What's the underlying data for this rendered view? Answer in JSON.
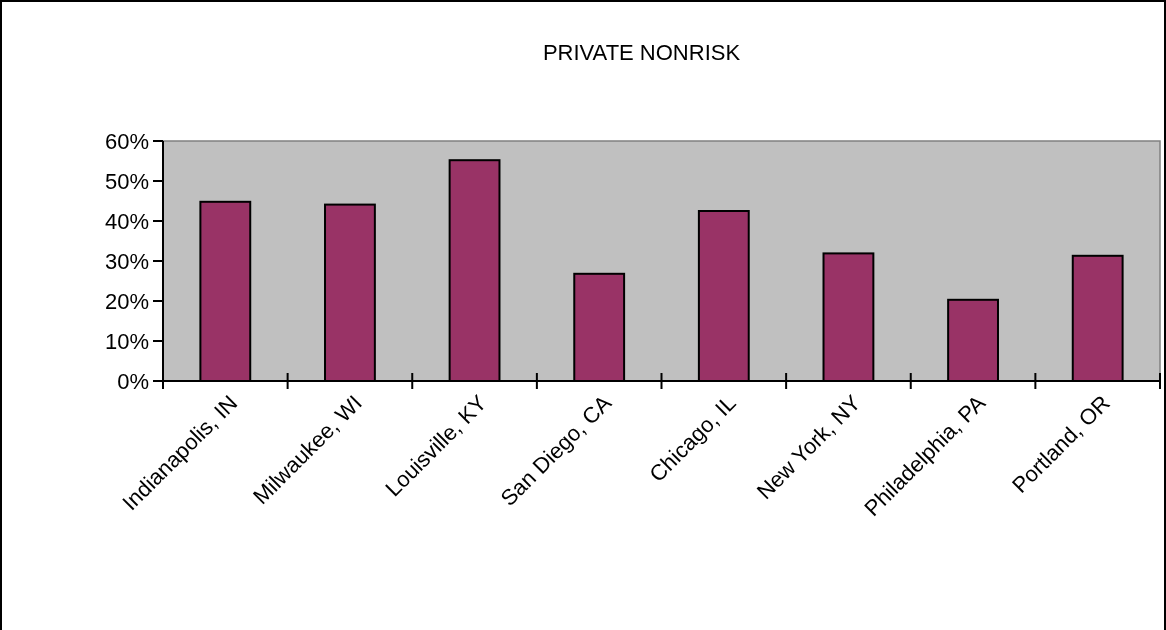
{
  "chart_data": {
    "type": "bar",
    "title": "PRIVATE NONRISK",
    "categories": [
      "Indianapolis, IN",
      "Milwaukee, WI",
      "Louisville, KY",
      "San Diego, CA",
      "Chicago, IL",
      "New York, NY",
      "Philadelphia, PA",
      "Portland, OR"
    ],
    "values": [
      44.8,
      44.1,
      55.2,
      26.8,
      42.5,
      31.9,
      20.3,
      31.3
    ],
    "color": "#993366",
    "ylim": [
      0,
      60
    ],
    "yticks": [
      {
        "value": 0,
        "label": "0%"
      },
      {
        "value": 10,
        "label": "10%"
      },
      {
        "value": 20,
        "label": "20%"
      },
      {
        "value": 30,
        "label": "30%"
      },
      {
        "value": 40,
        "label": "40%"
      },
      {
        "value": 50,
        "label": "50%"
      },
      {
        "value": 60,
        "label": "60%"
      }
    ],
    "grid": false
  }
}
